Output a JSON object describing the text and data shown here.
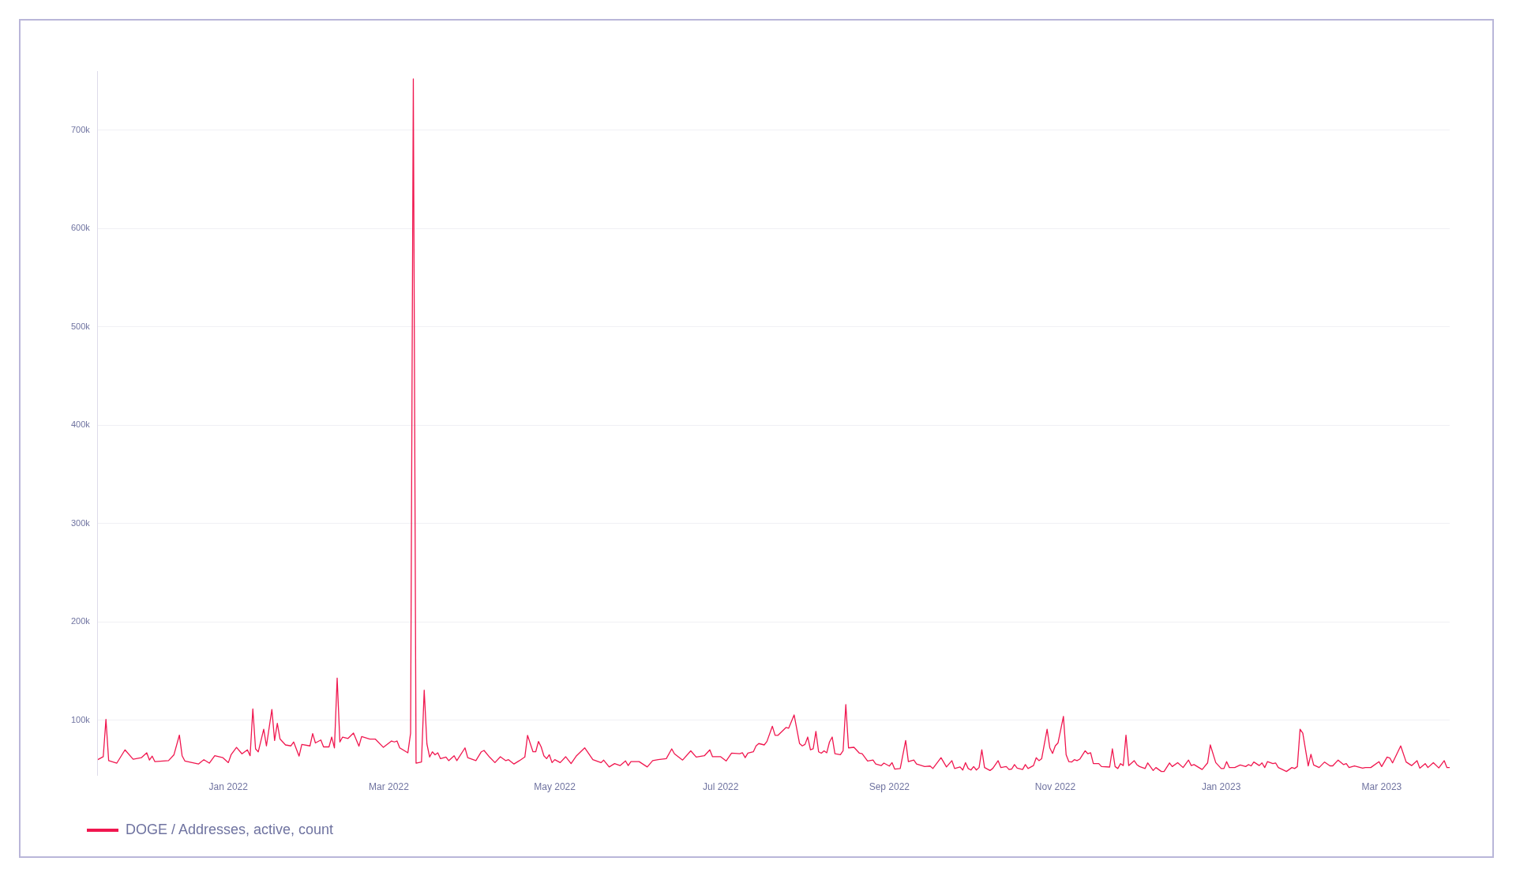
{
  "chart_data": {
    "type": "line",
    "legend": "bottom left",
    "grid": "y",
    "marker": "none",
    "line_style": "solid",
    "xlim": [
      "2021-11-14",
      "2023-03-26"
    ],
    "xticks": [
      {
        "value": "2022-01-01",
        "label": "Jan 2022"
      },
      {
        "value": "2022-03-01",
        "label": "Mar 2022"
      },
      {
        "value": "2022-05-01",
        "label": "May 2022"
      },
      {
        "value": "2022-07-01",
        "label": "Jul 2022"
      },
      {
        "value": "2022-09-01",
        "label": "Sep 2022"
      },
      {
        "value": "2022-11-01",
        "label": "Nov 2022"
      },
      {
        "value": "2023-01-01",
        "label": "Jan 2023"
      },
      {
        "value": "2023-03-01",
        "label": "Mar 2023"
      }
    ],
    "ylim": [
      44000,
      760000
    ],
    "yticks": [
      {
        "value": 100000,
        "label": "100k"
      },
      {
        "value": 200000,
        "label": "200k"
      },
      {
        "value": 300000,
        "label": "300k"
      },
      {
        "value": 400000,
        "label": "400k"
      },
      {
        "value": 500000,
        "label": "500k"
      },
      {
        "value": 600000,
        "label": "600k"
      },
      {
        "value": 700000,
        "label": "700k"
      }
    ],
    "series": [
      {
        "name": "DOGE / Addresses, active, count",
        "color": "#f0174f",
        "x": [
          "2021-11-14",
          "2021-11-16",
          "2021-11-17",
          "2021-11-18",
          "2021-11-21",
          "2021-11-24",
          "2021-11-27",
          "2021-11-30",
          "2021-12-02",
          "2021-12-03",
          "2021-12-04",
          "2021-12-05",
          "2021-12-10",
          "2021-12-12",
          "2021-12-14",
          "2021-12-15",
          "2021-12-16",
          "2021-12-21",
          "2021-12-23",
          "2021-12-25",
          "2021-12-27",
          "2021-12-30",
          "2022-01-01",
          "2022-01-02",
          "2022-01-04",
          "2022-01-06",
          "2022-01-08",
          "2022-01-09",
          "2022-01-10",
          "2022-01-11",
          "2022-01-12",
          "2022-01-14",
          "2022-01-15",
          "2022-01-17",
          "2022-01-18",
          "2022-01-19",
          "2022-01-20",
          "2022-01-22",
          "2022-01-24",
          "2022-01-25",
          "2022-01-27",
          "2022-01-28",
          "2022-01-31",
          "2022-02-01",
          "2022-02-02",
          "2022-02-04",
          "2022-02-05",
          "2022-02-07",
          "2022-02-08",
          "2022-02-09",
          "2022-02-10",
          "2022-02-11",
          "2022-02-12",
          "2022-02-14",
          "2022-02-16",
          "2022-02-18",
          "2022-02-19",
          "2022-02-22",
          "2022-02-24",
          "2022-02-27",
          "2022-03-02",
          "2022-03-03",
          "2022-03-04",
          "2022-03-05",
          "2022-03-08",
          "2022-03-09",
          "2022-03-10",
          "2022-03-11",
          "2022-03-13",
          "2022-03-14",
          "2022-03-15",
          "2022-03-16",
          "2022-03-17",
          "2022-03-18",
          "2022-03-19",
          "2022-03-20",
          "2022-03-22",
          "2022-03-23",
          "2022-03-25",
          "2022-03-26",
          "2022-03-29",
          "2022-03-30",
          "2022-04-02",
          "2022-04-04",
          "2022-04-05",
          "2022-04-07",
          "2022-04-09",
          "2022-04-11",
          "2022-04-13",
          "2022-04-14",
          "2022-04-16",
          "2022-04-18",
          "2022-04-20",
          "2022-04-21",
          "2022-04-23",
          "2022-04-24",
          "2022-04-25",
          "2022-04-26",
          "2022-04-27",
          "2022-04-28",
          "2022-04-29",
          "2022-04-30",
          "2022-05-01",
          "2022-05-03",
          "2022-05-05",
          "2022-05-07",
          "2022-05-09",
          "2022-05-12",
          "2022-05-15",
          "2022-05-18",
          "2022-05-19",
          "2022-05-21",
          "2022-05-23",
          "2022-05-25",
          "2022-05-27",
          "2022-05-28",
          "2022-05-29",
          "2022-06-01",
          "2022-06-04",
          "2022-06-06",
          "2022-06-08",
          "2022-06-11",
          "2022-06-13",
          "2022-06-14",
          "2022-06-17",
          "2022-06-20",
          "2022-06-22",
          "2022-06-25",
          "2022-06-27",
          "2022-06-28",
          "2022-07-01",
          "2022-07-03",
          "2022-07-05",
          "2022-07-08",
          "2022-07-09",
          "2022-07-10",
          "2022-07-11",
          "2022-07-13",
          "2022-07-14",
          "2022-07-15",
          "2022-07-17",
          "2022-07-18",
          "2022-07-20",
          "2022-07-21",
          "2022-07-22",
          "2022-07-25",
          "2022-07-26",
          "2022-07-28",
          "2022-07-30",
          "2022-07-31",
          "2022-08-01",
          "2022-08-02",
          "2022-08-03",
          "2022-08-04",
          "2022-08-05",
          "2022-08-06",
          "2022-08-07",
          "2022-08-08",
          "2022-08-09",
          "2022-08-10",
          "2022-08-11",
          "2022-08-12",
          "2022-08-14",
          "2022-08-15",
          "2022-08-16",
          "2022-08-17",
          "2022-08-19",
          "2022-08-21",
          "2022-08-22",
          "2022-08-24",
          "2022-08-26",
          "2022-08-27",
          "2022-08-29",
          "2022-08-30",
          "2022-09-01",
          "2022-09-02",
          "2022-09-03",
          "2022-09-05",
          "2022-09-07",
          "2022-09-08",
          "2022-09-10",
          "2022-09-11",
          "2022-09-14",
          "2022-09-16",
          "2022-09-17",
          "2022-09-20",
          "2022-09-22",
          "2022-09-24",
          "2022-09-25",
          "2022-09-27",
          "2022-09-28",
          "2022-09-29",
          "2022-09-30",
          "2022-10-01",
          "2022-10-02",
          "2022-10-03",
          "2022-10-04",
          "2022-10-05",
          "2022-10-06",
          "2022-10-08",
          "2022-10-09",
          "2022-10-11",
          "2022-10-12",
          "2022-10-14",
          "2022-10-15",
          "2022-10-16",
          "2022-10-17",
          "2022-10-18",
          "2022-10-20",
          "2022-10-21",
          "2022-10-22",
          "2022-10-24",
          "2022-10-25",
          "2022-10-26",
          "2022-10-27",
          "2022-10-29",
          "2022-10-30",
          "2022-10-31",
          "2022-11-01",
          "2022-11-02",
          "2022-11-04",
          "2022-11-05",
          "2022-11-06",
          "2022-11-07",
          "2022-11-08",
          "2022-11-09",
          "2022-11-10",
          "2022-11-12",
          "2022-11-13",
          "2022-11-14",
          "2022-11-15",
          "2022-11-17",
          "2022-11-18",
          "2022-11-21",
          "2022-11-22",
          "2022-11-23",
          "2022-11-24",
          "2022-11-25",
          "2022-11-26",
          "2022-11-27",
          "2022-11-28",
          "2022-11-30",
          "2022-12-01",
          "2022-12-02",
          "2022-12-04",
          "2022-12-05",
          "2022-12-07",
          "2022-12-08",
          "2022-12-10",
          "2022-12-11",
          "2022-12-13",
          "2022-12-14",
          "2022-12-16",
          "2022-12-18",
          "2022-12-20",
          "2022-12-21",
          "2022-12-22",
          "2022-12-25",
          "2022-12-27",
          "2022-12-28",
          "2022-12-30",
          "2023-01-01",
          "2023-01-02",
          "2023-01-03",
          "2023-01-04",
          "2023-01-06",
          "2023-01-08",
          "2023-01-10",
          "2023-01-11",
          "2023-01-12",
          "2023-01-13",
          "2023-01-15",
          "2023-01-16",
          "2023-01-17",
          "2023-01-18",
          "2023-01-20",
          "2023-01-21",
          "2023-01-22",
          "2023-01-25",
          "2023-01-27",
          "2023-01-28",
          "2023-01-29",
          "2023-01-30",
          "2023-01-31",
          "2023-02-02",
          "2023-02-03",
          "2023-02-04",
          "2023-02-06",
          "2023-02-08",
          "2023-02-10",
          "2023-02-11",
          "2023-02-13",
          "2023-02-15",
          "2023-02-16",
          "2023-02-17",
          "2023-02-19",
          "2023-02-22",
          "2023-02-23",
          "2023-02-25",
          "2023-02-28",
          "2023-03-01",
          "2023-03-03",
          "2023-03-04",
          "2023-03-05",
          "2023-03-08",
          "2023-03-10",
          "2023-03-12",
          "2023-03-14",
          "2023-03-15",
          "2023-03-17",
          "2023-03-18",
          "2023-03-20",
          "2023-03-22",
          "2023-03-24",
          "2023-03-25",
          "2023-03-26"
        ],
        "values": [
          60000,
          63000,
          101000,
          59000,
          56500,
          70000,
          60500,
          62000,
          67000,
          59600,
          63600,
          58000,
          59000,
          65000,
          85000,
          64000,
          58700,
          55600,
          60000,
          56500,
          64000,
          62000,
          57000,
          65000,
          72500,
          66000,
          70000,
          64000,
          111600,
          71000,
          68000,
          91000,
          74000,
          111000,
          79500,
          97000,
          81000,
          75000,
          74000,
          78000,
          63600,
          75500,
          74000,
          86500,
          77000,
          80000,
          73000,
          73000,
          83000,
          72000,
          143000,
          78000,
          83000,
          81600,
          87000,
          73700,
          83500,
          81000,
          81000,
          72500,
          79000,
          78000,
          79000,
          72000,
          67000,
          87000,
          752000,
          56500,
          57700,
          130600,
          76000,
          62700,
          68000,
          65000,
          67000,
          61000,
          62700,
          59000,
          64000,
          59000,
          72000,
          62000,
          59000,
          68000,
          69400,
          62700,
          57000,
          63000,
          59000,
          60000,
          55600,
          59000,
          62700,
          84700,
          68000,
          68000,
          78500,
          73000,
          64000,
          61000,
          65000,
          57000,
          60000,
          57000,
          63000,
          56000,
          64000,
          72000,
          60000,
          57000,
          59500,
          52600,
          56000,
          54000,
          58700,
          54000,
          58000,
          58000,
          52600,
          59000,
          60000,
          61000,
          71000,
          66000,
          59600,
          69000,
          62700,
          64000,
          70000,
          63000,
          63000,
          58700,
          66600,
          66000,
          67000,
          62000,
          66600,
          68000,
          74000,
          76400,
          75000,
          78500,
          94000,
          84700,
          84700,
          92700,
          92000,
          105500,
          76400,
          74000,
          75500,
          83000,
          70000,
          71000,
          88700,
          68000,
          66600,
          69000,
          67000,
          78000,
          83000,
          66000,
          65000,
          69000,
          116000,
          72000,
          72600,
          66600,
          66000,
          58700,
          59600,
          55600,
          54000,
          56500,
          53500,
          57000,
          50400,
          51000,
          79500,
          58000,
          59600,
          55600,
          53000,
          53500,
          51000,
          62000,
          52600,
          59000,
          51000,
          52600,
          49500,
          57000,
          51000,
          49500,
          53000,
          49500,
          52000,
          70000,
          52000,
          49000,
          51000,
          59000,
          52000,
          53000,
          50000,
          50500,
          55000,
          51400,
          50000,
          55000,
          51000,
          54000,
          62000,
          59000,
          61000,
          91000,
          72000,
          66400,
          74000,
          77000,
          104000,
          65000,
          58000,
          57600,
          60000,
          59000,
          60500,
          69000,
          66000,
          67000,
          56000,
          56000,
          53000,
          52500,
          71000,
          53000,
          51000,
          56000,
          54000,
          85000,
          54000,
          59000,
          55000,
          53000,
          51000,
          56700,
          49000,
          52000,
          48000,
          48000,
          56700,
          53000,
          57000,
          52000,
          59600,
          54000,
          55000,
          50000,
          56700,
          75000,
          57000,
          51000,
          51000,
          58000,
          52000,
          52000,
          54600,
          53000,
          55000,
          53700,
          57600,
          54000,
          56700,
          52000,
          58000,
          56000,
          56700,
          52000,
          48000,
          52000,
          51000,
          53000,
          91000,
          87000,
          53700,
          65500,
          54600,
          52000,
          57600,
          53700,
          53700,
          59600,
          55000,
          56000,
          52000,
          53700,
          51400,
          52000,
          52000,
          58000,
          53000,
          62600,
          61700,
          56700,
          74000,
          57600,
          54000,
          59000,
          51400,
          56000,
          52000,
          57000,
          51600,
          59000,
          52000,
          52000
        ]
      }
    ]
  }
}
